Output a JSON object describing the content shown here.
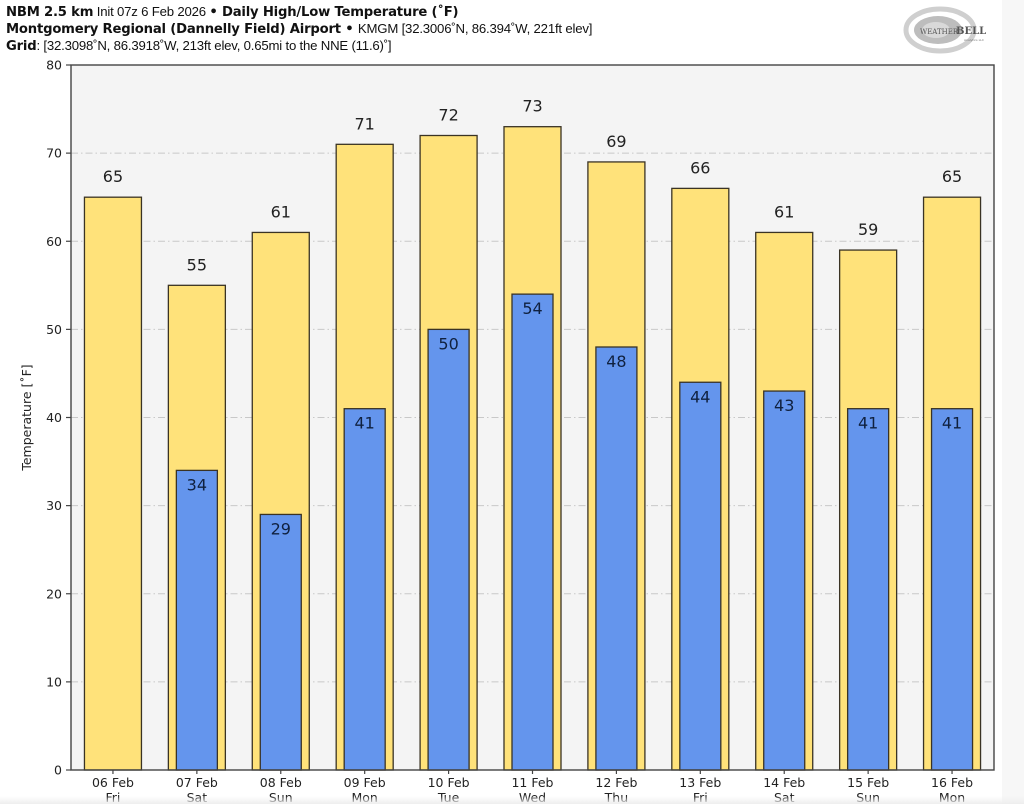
{
  "header": {
    "line1_bold1": "NBM 2.5 km",
    "line1_init": " Init 07z 6 Feb 2026 ",
    "line1_sep": "• ",
    "line1_bold2": "Daily High/Low Temperature (˚F)",
    "line2_bold": "Montgomery Regional (Dannelly Field) Airport",
    "line2_sep": " • ",
    "line2_rest": "KMGM [32.3006˚N, 86.394˚W, 221ft elev]",
    "line3_bold": "Grid",
    "line3_rest": ": [32.3098˚N, 86.3918˚W, 213ft elev, 0.65mi to the NNE (11.6)˚]"
  },
  "logo": {
    "text1": "WEATHER",
    "text2": "BELL",
    "sub": "Analytics LLC"
  },
  "colors": {
    "high": "#ffe27a",
    "low": "#6495ed",
    "edge": "#3a3324",
    "plot_bg": "#f4f4f4",
    "grid": "#c8c8c8",
    "text": "#222222"
  },
  "chart_data": {
    "type": "bar",
    "title": "Daily High/Low Temperature (˚F)",
    "xlabel": "",
    "ylabel": "Temperature [˚F]",
    "ylim": [
      0,
      80
    ],
    "yticks": [
      0,
      10,
      20,
      30,
      40,
      50,
      60,
      70,
      80
    ],
    "grid": true,
    "categories": [
      [
        "06 Feb",
        "Fri"
      ],
      [
        "07 Feb",
        "Sat"
      ],
      [
        "08 Feb",
        "Sun"
      ],
      [
        "09 Feb",
        "Mon"
      ],
      [
        "10 Feb",
        "Tue"
      ],
      [
        "11 Feb",
        "Wed"
      ],
      [
        "12 Feb",
        "Thu"
      ],
      [
        "13 Feb",
        "Fri"
      ],
      [
        "14 Feb",
        "Sat"
      ],
      [
        "15 Feb",
        "Sun"
      ],
      [
        "16 Feb",
        "Mon"
      ]
    ],
    "series": [
      {
        "name": "High",
        "values": [
          65,
          55,
          61,
          71,
          72,
          73,
          69,
          66,
          61,
          59,
          65
        ],
        "labels": [
          "65",
          "55",
          "61",
          "71",
          "72",
          "73",
          "69",
          "66",
          "61",
          "59",
          "65"
        ]
      },
      {
        "name": "Low",
        "values": [
          null,
          34,
          29,
          41,
          50,
          54,
          48,
          44,
          43,
          41,
          41
        ],
        "labels": [
          "",
          "34",
          "29",
          "41",
          "50",
          "54",
          "48",
          "44",
          "43",
          "41",
          "41"
        ]
      }
    ]
  }
}
